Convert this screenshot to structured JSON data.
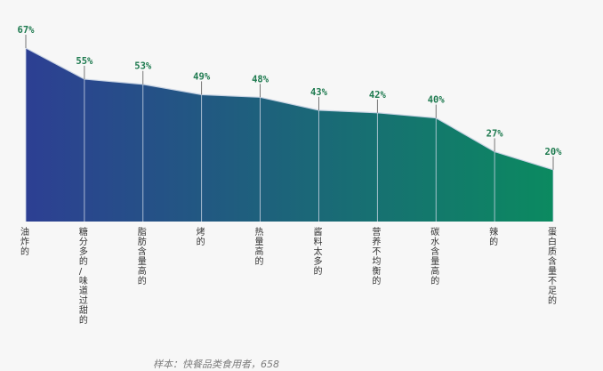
{
  "chart_data": {
    "type": "area",
    "categories": [
      "油炸的",
      "糖分多的/味道过甜的",
      "脂肪含量高的",
      "烤的",
      "热量高的",
      "酱料太多的",
      "营养不均衡的",
      "碳水含量高的",
      "辣的",
      "蛋白质含量不足的"
    ],
    "values": [
      67,
      55,
      53,
      49,
      48,
      43,
      42,
      40,
      27,
      20
    ],
    "value_labels": [
      "67%",
      "55%",
      "53%",
      "49%",
      "48%",
      "43%",
      "42%",
      "40%",
      "27%",
      "20%"
    ],
    "ylim": [
      0,
      67
    ],
    "grid": false,
    "legend": "none",
    "gradient": [
      "#2d3f93",
      "#0b8a60"
    ],
    "line_color": "#c9d4e4",
    "label_color": "#1e7a4f",
    "category_color": "#333333",
    "background": "#f7f7f7"
  },
  "footnote": "样本：快餐品类食用者，658"
}
